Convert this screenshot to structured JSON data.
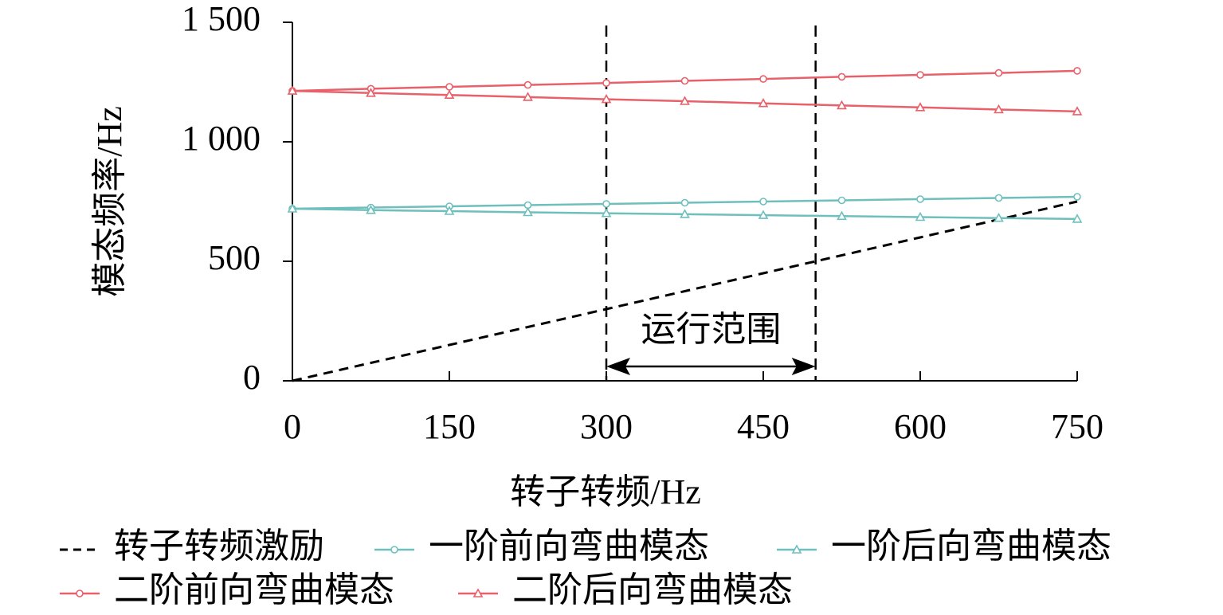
{
  "chart_data": {
    "type": "line",
    "xlabel": "转子转频/Hz",
    "ylabel": "模态频率/Hz",
    "x": [
      0,
      75,
      150,
      225,
      300,
      375,
      450,
      525,
      600,
      675,
      750
    ],
    "series": [
      {
        "name": "转子转频激励",
        "color": "#000000",
        "dash": true,
        "marker": null,
        "values": [
          0,
          75,
          150,
          225,
          300,
          375,
          450,
          525,
          600,
          675,
          750
        ]
      },
      {
        "name": "一阶前向弯曲模态",
        "color": "#6fbfbd",
        "dash": false,
        "marker": "circle",
        "values": [
          720,
          725,
          730,
          735,
          740,
          745,
          750,
          755,
          760,
          765,
          770
        ]
      },
      {
        "name": "一阶后向弯曲模态",
        "color": "#6fbfbd",
        "dash": false,
        "marker": "triangle",
        "values": [
          720,
          714,
          710,
          705,
          701,
          697,
          693,
          689,
          685,
          681,
          677
        ]
      },
      {
        "name": "二阶前向弯曲模态",
        "color": "#e8606a",
        "dash": false,
        "marker": "circle",
        "values": [
          1213,
          1222,
          1230,
          1238,
          1246,
          1255,
          1263,
          1272,
          1280,
          1288,
          1297
        ]
      },
      {
        "name": "二阶后向弯曲模态",
        "color": "#e8606a",
        "dash": false,
        "marker": "triangle",
        "values": [
          1213,
          1204,
          1196,
          1187,
          1178,
          1170,
          1161,
          1152,
          1144,
          1135,
          1127
        ]
      }
    ],
    "annotation": {
      "text": "运行范围",
      "range": [
        300,
        500
      ]
    },
    "xlim": [
      0,
      750
    ],
    "xticks": [
      0,
      150,
      300,
      450,
      600,
      750
    ],
    "ylim": [
      0,
      1500
    ],
    "yticks": [
      0,
      500,
      {
        "value": 1000,
        "label": "1 000"
      },
      {
        "value": 1500,
        "label": "1 500"
      }
    ],
    "legend": "bottom"
  }
}
